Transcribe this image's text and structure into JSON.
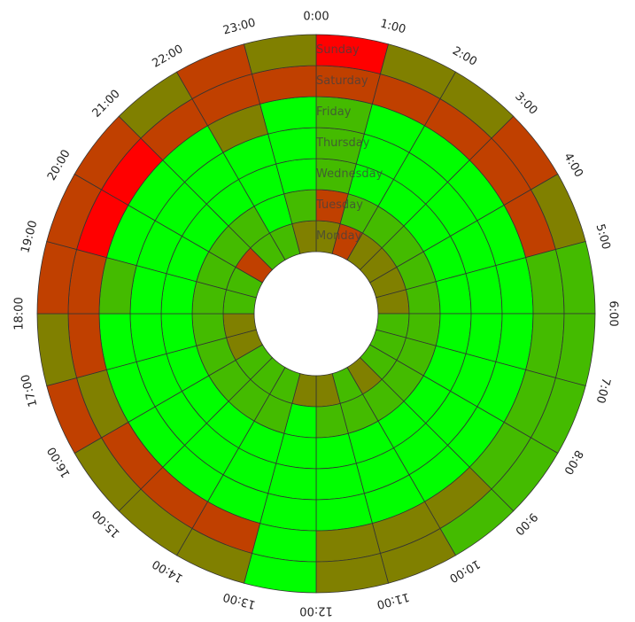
{
  "chart_data": {
    "type": "heatmap",
    "layout": "radial",
    "title": "",
    "hours": [
      "0:00",
      "1:00",
      "2:00",
      "3:00",
      "4:00",
      "5:00",
      "6:00",
      "7:00",
      "8:00",
      "9:00",
      "10:00",
      "11:00",
      "12:00",
      "13:00",
      "14:00",
      "15:00",
      "16:00",
      "17:00",
      "18:00",
      "19:00",
      "20:00",
      "21:00",
      "22:00",
      "23:00"
    ],
    "days": [
      "Monday",
      "Tuesday",
      "Wednesday",
      "Thursday",
      "Friday",
      "Saturday",
      "Sunday"
    ],
    "color_scale": {
      "0": "#00ff00",
      "1": "#44bb00",
      "2": "#808000",
      "3": "#c04000",
      "4": "#ff0000"
    },
    "values": {
      "Monday": [
        2,
        3,
        2,
        2,
        2,
        2,
        1,
        1,
        1,
        2,
        1,
        2,
        2,
        1,
        1,
        1,
        2,
        2,
        1,
        1,
        3,
        1,
        1,
        2
      ],
      "Tuesday": [
        3,
        1,
        1,
        1,
        1,
        1,
        1,
        1,
        1,
        1,
        1,
        1,
        0,
        1,
        1,
        1,
        1,
        1,
        1,
        1,
        1,
        1,
        0,
        1
      ],
      "Wednesday": [
        1,
        0,
        0,
        0,
        0,
        0,
        0,
        0,
        0,
        0,
        0,
        0,
        0,
        0,
        0,
        0,
        0,
        0,
        0,
        0,
        0,
        0,
        0,
        0
      ],
      "Thursday": [
        1,
        0,
        0,
        0,
        0,
        0,
        0,
        0,
        0,
        0,
        0,
        0,
        0,
        0,
        0,
        0,
        0,
        0,
        0,
        0,
        0,
        0,
        0,
        0
      ],
      "Friday": [
        1,
        0,
        0,
        0,
        0,
        0,
        0,
        0,
        0,
        0,
        0,
        0,
        0,
        0,
        0,
        0,
        0,
        0,
        1,
        0,
        0,
        0,
        2,
        0
      ],
      "Saturday": [
        3,
        3,
        3,
        3,
        3,
        1,
        1,
        1,
        1,
        2,
        2,
        2,
        0,
        3,
        3,
        3,
        2,
        3,
        3,
        4,
        4,
        3,
        3,
        3
      ],
      "Sunday": [
        4,
        2,
        2,
        3,
        2,
        1,
        1,
        1,
        1,
        1,
        2,
        2,
        0,
        2,
        2,
        2,
        3,
        2,
        3,
        3,
        3,
        2,
        3,
        2
      ]
    }
  }
}
